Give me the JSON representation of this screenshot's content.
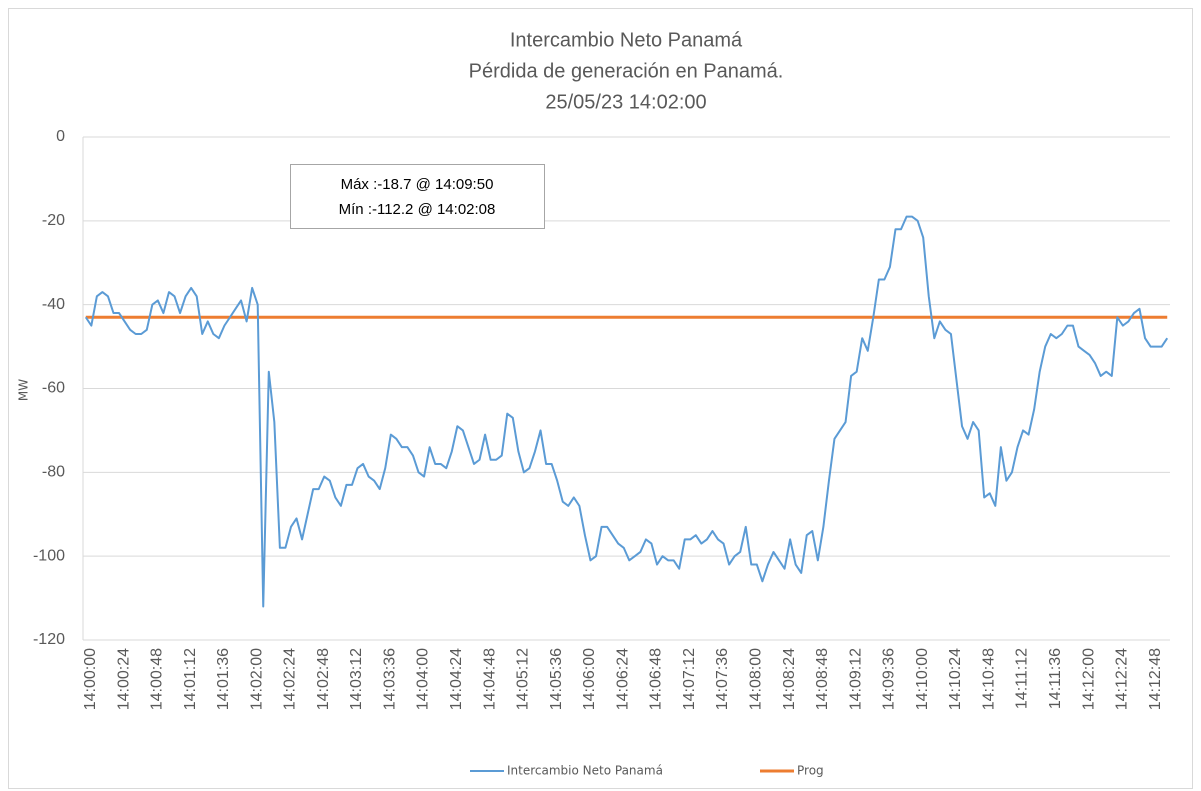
{
  "chart_data": {
    "type": "line",
    "title": "Intercambio Neto Panamá",
    "subtitle": "Pérdida de generación en Panamá.",
    "date_label": "25/05/23 14:02:00",
    "y_label": "MW",
    "annotations": [
      "Máx :-18.7 @ 14:09:50",
      "Mín :-112.2 @ 14:02:08"
    ],
    "ylim": [
      -120,
      0
    ],
    "yticks": [
      0,
      -20,
      -40,
      -60,
      -80,
      -100,
      -120
    ],
    "grid": true,
    "legend": "bottom",
    "categories": [
      "14:00:00",
      null,
      null,
      null,
      null,
      null,
      "14:00:24",
      null,
      null,
      null,
      null,
      null,
      "14:00:48",
      null,
      null,
      null,
      null,
      null,
      "14:01:12",
      null,
      null,
      null,
      null,
      null,
      "14:01:36",
      null,
      null,
      null,
      null,
      null,
      "14:02:00",
      null,
      null,
      null,
      null,
      null,
      "14:02:24",
      null,
      null,
      null,
      null,
      null,
      "14:02:48",
      null,
      null,
      null,
      null,
      null,
      "14:03:12",
      null,
      null,
      null,
      null,
      null,
      "14:03:36",
      null,
      null,
      null,
      null,
      null,
      "14:04:00",
      null,
      null,
      null,
      null,
      null,
      "14:04:24",
      null,
      null,
      null,
      null,
      null,
      "14:04:48",
      null,
      null,
      null,
      null,
      null,
      "14:05:12",
      null,
      null,
      null,
      null,
      null,
      "14:05:36",
      null,
      null,
      null,
      null,
      null,
      "14:06:00",
      null,
      null,
      null,
      null,
      null,
      "14:06:24",
      null,
      null,
      null,
      null,
      null,
      "14:06:48",
      null,
      null,
      null,
      null,
      null,
      "14:07:12",
      null,
      null,
      null,
      null,
      null,
      "14:07:36",
      null,
      null,
      null,
      null,
      null,
      "14:08:00",
      null,
      null,
      null,
      null,
      null,
      "14:08:24",
      null,
      null,
      null,
      null,
      null,
      "14:08:48",
      null,
      null,
      null,
      null,
      null,
      "14:09:12",
      null,
      null,
      null,
      null,
      null,
      "14:09:36",
      null,
      null,
      null,
      null,
      null,
      "14:10:00",
      null,
      null,
      null,
      null,
      null,
      "14:10:24",
      null,
      null,
      null,
      null,
      null,
      "14:10:48",
      null,
      null,
      null,
      null,
      null,
      "14:11:12",
      null,
      null,
      null,
      null,
      null,
      "14:11:36",
      null,
      null,
      null,
      null,
      null,
      "14:12:00",
      null,
      null,
      null,
      null,
      null,
      "14:12:24",
      null,
      null,
      null,
      null,
      null,
      "14:12:48",
      null,
      null,
      null
    ],
    "series": [
      {
        "name": "Intercambio Neto Panamá",
        "color": "#5b9bd5",
        "values": [
          -43,
          -45,
          -38,
          -37,
          -38,
          -42,
          -42,
          -44,
          -46,
          -47,
          -47,
          -46,
          -40,
          -39,
          -42,
          -37,
          -38,
          -42,
          -38,
          -36,
          -38,
          -47,
          -44,
          -47,
          -48,
          -45,
          -43,
          -41,
          -39,
          -44,
          -36,
          -40,
          -112,
          -56,
          -68,
          -98,
          -98,
          -93,
          -91,
          -96,
          -90,
          -84,
          -84,
          -81,
          -82,
          -86,
          -88,
          -83,
          -83,
          -79,
          -78,
          -81,
          -82,
          -84,
          -79,
          -71,
          -72,
          -74,
          -74,
          -76,
          -80,
          -81,
          -74,
          -78,
          -78,
          -79,
          -75,
          -69,
          -70,
          -74,
          -78,
          -77,
          -71,
          -77,
          -77,
          -76,
          -66,
          -67,
          -75,
          -80,
          -79,
          -75,
          -70,
          -78,
          -78,
          -82,
          -87,
          -88,
          -86,
          -88,
          -95,
          -101,
          -100,
          -93,
          -93,
          -95,
          -97,
          -98,
          -101,
          -100,
          -99,
          -96,
          -97,
          -102,
          -100,
          -101,
          -101,
          -103,
          -96,
          -96,
          -95,
          -97,
          -96,
          -94,
          -96,
          -97,
          -102,
          -100,
          -99,
          -93,
          -102,
          -102,
          -106,
          -102,
          -99,
          -101,
          -103,
          -96,
          -102,
          -104,
          -95,
          -94,
          -101,
          -93,
          -82,
          -72,
          -70,
          -68,
          -57,
          -56,
          -48,
          -51,
          -43,
          -34,
          -34,
          -31,
          -22,
          -22,
          -19,
          -19,
          -20,
          -24,
          -38,
          -48,
          -44,
          -46,
          -47,
          -58,
          -69,
          -72,
          -68,
          -70,
          -86,
          -85,
          -88,
          -74,
          -82,
          -80,
          -74,
          -70,
          -71,
          -65,
          -56,
          -50,
          -47,
          -48,
          -47,
          -45,
          -45,
          -50,
          -51,
          -52,
          -54,
          -57,
          -56,
          -57,
          -43,
          -45,
          -44,
          -42,
          -41,
          -48,
          -50,
          -50,
          -50,
          -48
        ]
      },
      {
        "name": "Prog",
        "color": "#ed7d31",
        "values": [
          -43,
          -43,
          -43,
          -43,
          -43,
          -43,
          -43,
          -43,
          -43,
          -43,
          -43,
          -43,
          -43,
          -43,
          -43,
          -43,
          -43,
          -43,
          -43,
          -43,
          -43,
          -43,
          -43,
          -43,
          -43,
          -43,
          -43,
          -43,
          -43,
          -43,
          -43,
          -43,
          -43,
          -43,
          -43,
          -43,
          -43,
          -43,
          -43,
          -43,
          -43,
          -43,
          -43,
          -43,
          -43,
          -43,
          -43,
          -43,
          -43,
          -43,
          -43,
          -43,
          -43,
          -43,
          -43,
          -43,
          -43,
          -43,
          -43,
          -43,
          -43,
          -43,
          -43,
          -43,
          -43,
          -43,
          -43,
          -43,
          -43,
          -43,
          -43,
          -43,
          -43,
          -43,
          -43,
          -43,
          -43,
          -43,
          -43,
          -43,
          -43,
          -43,
          -43,
          -43,
          -43,
          -43,
          -43,
          -43,
          -43,
          -43,
          -43,
          -43,
          -43,
          -43,
          -43,
          -43,
          -43,
          -43,
          -43,
          -43,
          -43,
          -43,
          -43,
          -43,
          -43,
          -43,
          -43,
          -43,
          -43,
          -43,
          -43,
          -43,
          -43,
          -43,
          -43,
          -43,
          -43,
          -43,
          -43,
          -43,
          -43,
          -43,
          -43,
          -43,
          -43,
          -43,
          -43,
          -43,
          -43,
          -43,
          -43,
          -43,
          -43,
          -43,
          -43,
          -43,
          -43,
          -43,
          -43,
          -43,
          -43,
          -43,
          -43,
          -43,
          -43,
          -43,
          -43,
          -43,
          -43,
          -43,
          -43,
          -43,
          -43,
          -43,
          -43,
          -43,
          -43,
          -43,
          -43,
          -43,
          -43,
          -43,
          -43,
          -43,
          -43,
          -43,
          -43,
          -43,
          -43,
          -43,
          -43,
          -43,
          -43,
          -43,
          -43,
          -43,
          -43,
          -43,
          -43,
          -43,
          -43,
          -43,
          -43,
          -43,
          -43,
          -43,
          -43,
          -43,
          -43,
          -43,
          -43,
          -43,
          -43,
          -43,
          -43,
          -43
        ]
      }
    ]
  }
}
